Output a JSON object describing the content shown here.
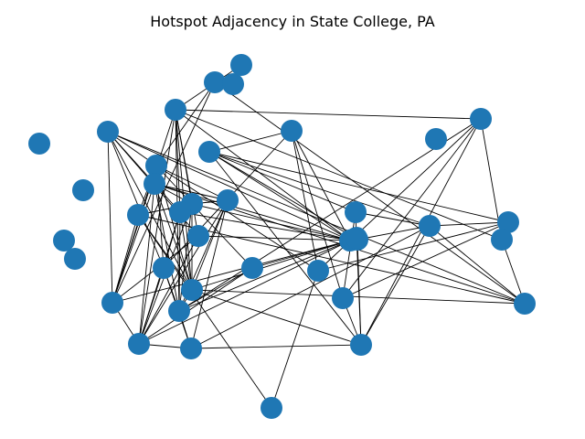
{
  "title": "Hotspot Adjacency in State College, PA",
  "style": {
    "node_color": "#1f77b4",
    "edge_color": "#000000",
    "background": "#ffffff"
  },
  "graph": {
    "node_count": 40,
    "nodes": [
      "n1",
      "n2",
      "n3",
      "n4",
      "n5",
      "n6",
      "n7",
      "n8",
      "n9",
      "n10",
      "n11",
      "n12",
      "n13",
      "n14",
      "n15",
      "n16",
      "n17",
      "n18",
      "n19",
      "n20",
      "n21",
      "n22",
      "n23",
      "n24",
      "n25",
      "n26",
      "n27",
      "n28",
      "n29",
      "n30",
      "n31",
      "n32",
      "n33",
      "n34",
      "n35",
      "n36",
      "n37",
      "n38",
      "n39",
      "n40"
    ],
    "edges": [
      [
        "n5",
        "n12"
      ],
      [
        "n5",
        "n14"
      ],
      [
        "n5",
        "n16"
      ],
      [
        "n5",
        "n19"
      ],
      [
        "n5",
        "n26"
      ],
      [
        "n5",
        "n35"
      ],
      [
        "n5",
        "n7"
      ],
      [
        "n5",
        "n15"
      ],
      [
        "n6",
        "n10"
      ],
      [
        "n6",
        "n12"
      ],
      [
        "n6",
        "n14"
      ],
      [
        "n6",
        "n16"
      ],
      [
        "n6",
        "n19"
      ],
      [
        "n6",
        "n20"
      ],
      [
        "n6",
        "n21"
      ],
      [
        "n6",
        "n31"
      ],
      [
        "n6",
        "n33"
      ],
      [
        "n6",
        "n26"
      ],
      [
        "n6",
        "n38"
      ],
      [
        "n7",
        "n13"
      ],
      [
        "n7",
        "n15"
      ],
      [
        "n7",
        "n16"
      ],
      [
        "n7",
        "n19"
      ],
      [
        "n7",
        "n23"
      ],
      [
        "n7",
        "n36"
      ],
      [
        "n7",
        "n11"
      ],
      [
        "n7",
        "n10"
      ],
      [
        "n8",
        "n16"
      ],
      [
        "n8",
        "n19"
      ],
      [
        "n8",
        "n20"
      ],
      [
        "n8",
        "n21"
      ],
      [
        "n8",
        "n26"
      ],
      [
        "n8",
        "n35"
      ],
      [
        "n8",
        "n13"
      ],
      [
        "n8",
        "n10"
      ],
      [
        "n9",
        "n18"
      ],
      [
        "n9",
        "n29"
      ],
      [
        "n9",
        "n27"
      ],
      [
        "n9",
        "n32"
      ],
      [
        "n9",
        "n25"
      ],
      [
        "n9",
        "n26"
      ],
      [
        "n9",
        "n30"
      ],
      [
        "n10",
        "n11"
      ],
      [
        "n10",
        "n13"
      ],
      [
        "n10",
        "n16"
      ],
      [
        "n10",
        "n17"
      ],
      [
        "n10",
        "n20"
      ],
      [
        "n10",
        "n21"
      ],
      [
        "n10",
        "n26"
      ],
      [
        "n11",
        "n16"
      ],
      [
        "n11",
        "n19"
      ],
      [
        "n11",
        "n24"
      ],
      [
        "n11",
        "n35"
      ],
      [
        "n12",
        "n15"
      ],
      [
        "n12",
        "n16"
      ],
      [
        "n12",
        "n20"
      ],
      [
        "n12",
        "n21"
      ],
      [
        "n12",
        "n26"
      ],
      [
        "n13",
        "n16"
      ],
      [
        "n13",
        "n20"
      ],
      [
        "n13",
        "n21"
      ],
      [
        "n13",
        "n22"
      ],
      [
        "n14",
        "n21"
      ],
      [
        "n14",
        "n26"
      ],
      [
        "n14",
        "n19"
      ],
      [
        "n15",
        "n18"
      ],
      [
        "n15",
        "n22"
      ],
      [
        "n15",
        "n21"
      ],
      [
        "n15",
        "n20"
      ],
      [
        "n16",
        "n26"
      ],
      [
        "n16",
        "n35"
      ],
      [
        "n16",
        "n29"
      ],
      [
        "n16",
        "n20"
      ],
      [
        "n17",
        "n20"
      ],
      [
        "n17",
        "n26"
      ],
      [
        "n17",
        "n21"
      ],
      [
        "n18",
        "n23"
      ],
      [
        "n18",
        "n26"
      ],
      [
        "n18",
        "n28"
      ],
      [
        "n19",
        "n21"
      ],
      [
        "n19",
        "n26"
      ],
      [
        "n20",
        "n26"
      ],
      [
        "n20",
        "n22"
      ],
      [
        "n20",
        "n31"
      ],
      [
        "n21",
        "n26"
      ],
      [
        "n21",
        "n22"
      ],
      [
        "n22",
        "n29"
      ],
      [
        "n22",
        "n30"
      ],
      [
        "n23",
        "n24"
      ],
      [
        "n23",
        "n31"
      ],
      [
        "n23",
        "n32"
      ],
      [
        "n25",
        "n29"
      ],
      [
        "n25",
        "n30"
      ],
      [
        "n25",
        "n28"
      ],
      [
        "n27",
        "n29"
      ],
      [
        "n27",
        "n30"
      ],
      [
        "n28",
        "n29"
      ],
      [
        "n28",
        "n31"
      ],
      [
        "n28",
        "n32"
      ],
      [
        "n29",
        "n30"
      ],
      [
        "n29",
        "n31"
      ],
      [
        "n30",
        "n32"
      ],
      [
        "n30",
        "n35"
      ],
      [
        "n31",
        "n33"
      ],
      [
        "n32",
        "n33"
      ],
      [
        "n35",
        "n36"
      ],
      [
        "n35",
        "n33"
      ],
      [
        "n36",
        "n19"
      ]
    ]
  }
}
